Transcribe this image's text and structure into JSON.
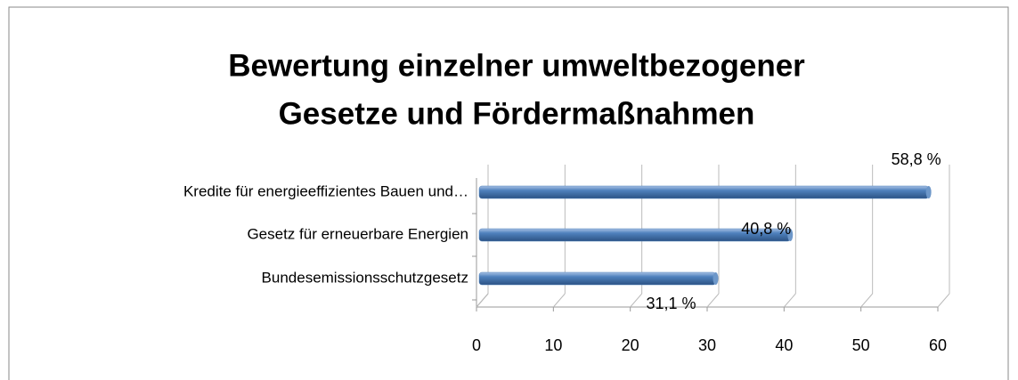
{
  "chart_data": {
    "type": "bar",
    "orientation": "horizontal",
    "title": [
      "Bewertung einzelner umweltbezogener",
      "Gesetze und Fördermaßnahmen"
    ],
    "categories": [
      "Kredite für energieeffizientes Bauen und…",
      "Gesetz für erneuerbare Energien",
      "Bundesemissionsschutzgesetz"
    ],
    "values": [
      58.8,
      40.8,
      31.1
    ],
    "value_labels": [
      "58,8 %",
      "40,8 %",
      "31,1 %"
    ],
    "color": "#4f81bd",
    "xlim": [
      0,
      60
    ],
    "xticks": [
      0,
      10,
      20,
      30,
      40,
      50,
      60
    ],
    "grid": true
  }
}
